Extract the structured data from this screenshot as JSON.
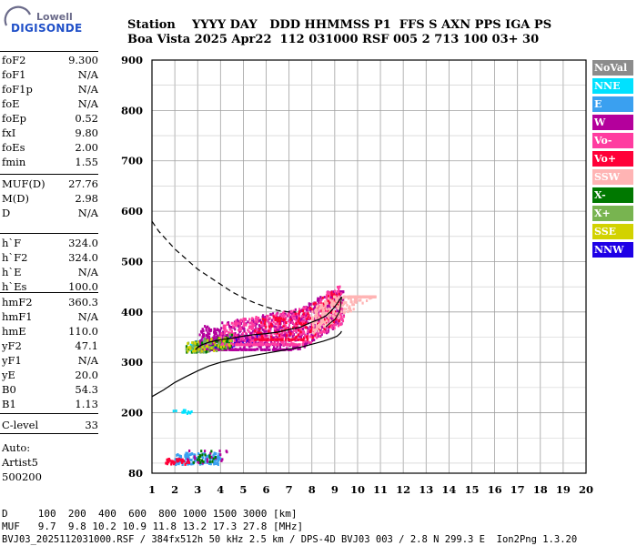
{
  "logo": {
    "line1": "Lowell",
    "line2": "DIGISONDE"
  },
  "header": {
    "line1": "Station    YYYY DAY   DDD HHMMSS P1  FFS S AXN PPS IGA PS",
    "line2": "Boa Vista 2025 Apr22  112 031000 RSF 005 2 713 100 03+ 30"
  },
  "params": {
    "group1": [
      {
        "k": "foF2",
        "v": "9.300"
      },
      {
        "k": "foF1",
        "v": "N/A"
      },
      {
        "k": "foF1p",
        "v": "N/A"
      },
      {
        "k": "foE",
        "v": "N/A"
      },
      {
        "k": "foEp",
        "v": "0.52"
      },
      {
        "k": "fxI",
        "v": "9.80"
      },
      {
        "k": "foEs",
        "v": "2.00"
      },
      {
        "k": "fmin",
        "v": "1.55"
      }
    ],
    "group2": [
      {
        "k": "MUF(D)",
        "v": "27.76"
      },
      {
        "k": "M(D)",
        "v": "2.98"
      },
      {
        "k": "D",
        "v": "N/A"
      }
    ],
    "group3": [
      {
        "k": "h`F",
        "v": "324.0"
      },
      {
        "k": "h`F2",
        "v": "324.0"
      },
      {
        "k": "h`E",
        "v": "N/A"
      },
      {
        "k": "h`Es",
        "v": "100.0"
      }
    ],
    "group4": [
      {
        "k": "hmF2",
        "v": "360.3"
      },
      {
        "k": "hmF1",
        "v": "N/A"
      },
      {
        "k": "hmE",
        "v": "110.0"
      },
      {
        "k": "yF2",
        "v": "47.1"
      },
      {
        "k": "yF1",
        "v": "N/A"
      },
      {
        "k": "yE",
        "v": "20.0"
      },
      {
        "k": "B0",
        "v": "54.3"
      },
      {
        "k": "B1",
        "v": "1.13"
      }
    ],
    "group5": [
      {
        "k": "C-level",
        "v": "33"
      }
    ]
  },
  "auto": {
    "line1": "Auto:",
    "line2": "Artist5",
    "line3": "500200"
  },
  "legend": [
    {
      "label": "NoVal",
      "color": "#8c8c8c"
    },
    {
      "label": "NNE",
      "color": "#00e1ff"
    },
    {
      "label": "E",
      "color": "#3aa0f0"
    },
    {
      "label": "W",
      "color": "#b4009c"
    },
    {
      "label": "Vo-",
      "color": "#ff3ca0"
    },
    {
      "label": "Vo+",
      "color": "#ff0038"
    },
    {
      "label": "SSW",
      "color": "#ffb4b4"
    },
    {
      "label": "X-",
      "color": "#007800"
    },
    {
      "label": "X+",
      "color": "#78b450"
    },
    {
      "label": "SSE",
      "color": "#d2d200"
    },
    {
      "label": "NNW",
      "color": "#1e00e6"
    }
  ],
  "bottom": {
    "line1": "D     100  200  400  600  800 1000 1500 3000 [km]",
    "line2": "MUF   9.7  9.8 10.2 10.9 11.8 13.2 17.3 27.8 [MHz]",
    "line3": "BVJ03_2025112031000.RSF / 384fx512h 50 kHz 2.5 km / DPS-4D BVJ03 003 / 2.8 N 299.3 E  Ion2Png 1.3.20"
  },
  "chart_data": {
    "type": "scatter",
    "title": "",
    "xlabel": "",
    "ylabel": "",
    "xlim": [
      1,
      20
    ],
    "ylim": [
      80,
      900
    ],
    "xticks": [
      1,
      2,
      3,
      4,
      5,
      6,
      7,
      8,
      9,
      10,
      11,
      12,
      13,
      14,
      15,
      16,
      17,
      18,
      19,
      20
    ],
    "yticks": [
      80,
      200,
      300,
      400,
      500,
      600,
      700,
      800,
      900
    ],
    "grid": true,
    "legend_placement": "right",
    "clusters": [
      {
        "name": "NNE",
        "color": "#00e1ff",
        "x": [
          2.6,
          3.2
        ],
        "y": [
          320,
          345
        ],
        "n": 40
      },
      {
        "name": "E",
        "color": "#3aa0f0",
        "x": [
          2.8,
          4.5
        ],
        "y": [
          322,
          360
        ],
        "n": 60
      },
      {
        "name": "NNW",
        "color": "#1e00e6",
        "x": [
          3.0,
          5.8
        ],
        "y": [
          318,
          352
        ],
        "n": 110
      },
      {
        "name": "W",
        "color": "#b4009c",
        "x": [
          3.0,
          9.4
        ],
        "y": [
          325,
          440
        ],
        "n": 900
      },
      {
        "name": "Vo-",
        "color": "#ff3ca0",
        "x": [
          4.0,
          9.4
        ],
        "y": [
          335,
          450
        ],
        "n": 500
      },
      {
        "name": "Vo+",
        "color": "#ff0038",
        "x": [
          5.5,
          9.2
        ],
        "y": [
          345,
          445
        ],
        "n": 200
      },
      {
        "name": "SSW",
        "color": "#ffb4b4",
        "x": [
          8.0,
          10.8
        ],
        "y": [
          355,
          430
        ],
        "n": 260
      },
      {
        "name": "X-",
        "color": "#007800",
        "x": [
          2.5,
          4.5
        ],
        "y": [
          320,
          360
        ],
        "n": 50
      },
      {
        "name": "X+",
        "color": "#78b450",
        "x": [
          2.5,
          4.5
        ],
        "y": [
          320,
          360
        ],
        "n": 50
      },
      {
        "name": "SSE",
        "color": "#d2d200",
        "x": [
          2.5,
          4.5
        ],
        "y": [
          322,
          360
        ],
        "n": 40
      },
      {
        "name": "Es_E",
        "color": "#3aa0f0",
        "x": [
          2.0,
          4.0
        ],
        "y": [
          97,
          120
        ],
        "n": 130
      },
      {
        "name": "Es_Vo+",
        "color": "#ff0038",
        "x": [
          1.6,
          2.7
        ],
        "y": [
          97,
          108
        ],
        "n": 40
      },
      {
        "name": "Es_W",
        "color": "#b4009c",
        "x": [
          2.5,
          4.3
        ],
        "y": [
          100,
          125
        ],
        "n": 20
      },
      {
        "name": "Es_X",
        "color": "#007800",
        "x": [
          2.8,
          3.8
        ],
        "y": [
          100,
          125
        ],
        "n": 20
      },
      {
        "name": "Es2_NNE",
        "color": "#00e1ff",
        "x": [
          1.9,
          2.8
        ],
        "y": [
          198,
          205
        ],
        "n": 15
      }
    ],
    "trace_oF": {
      "x": [
        2.9,
        3.0,
        3.2,
        3.5,
        4.0,
        4.5,
        5.0,
        5.5,
        6.0,
        6.5,
        7.0,
        7.5,
        8.0,
        8.3,
        8.6,
        8.8,
        9.0,
        9.15,
        9.3
      ],
      "y": [
        325,
        330,
        335,
        340,
        345,
        348,
        352,
        355,
        357,
        360,
        365,
        370,
        380,
        385,
        392,
        400,
        410,
        420,
        430
      ]
    },
    "profile_solid": {
      "x": [
        1.0,
        1.5,
        2.0,
        2.5,
        3.0,
        3.5,
        4.0,
        4.5,
        5.0,
        5.5,
        6.0,
        6.5,
        7.0,
        7.5,
        8.0,
        8.5,
        8.9,
        9.1,
        9.25,
        9.3
      ],
      "y": [
        232,
        245,
        260,
        272,
        283,
        293,
        300,
        305,
        310,
        314,
        318,
        322,
        326,
        330,
        336,
        342,
        348,
        352,
        358,
        362
      ]
    },
    "profile_dashed": {
      "x": [
        1.0,
        1.3,
        1.7,
        2.0,
        2.5,
        3.0,
        3.5,
        4.0,
        4.5,
        5.0,
        5.5,
        6.0,
        6.5,
        7.0,
        7.3
      ],
      "y": [
        580,
        560,
        540,
        525,
        505,
        485,
        470,
        455,
        440,
        428,
        418,
        410,
        403,
        400,
        400
      ]
    },
    "trace_oF2_branch": {
      "x": [
        8.6,
        8.8,
        9.0,
        9.1,
        9.2,
        9.25,
        9.3
      ],
      "y": [
        370,
        378,
        385,
        392,
        400,
        410,
        430
      ]
    }
  }
}
